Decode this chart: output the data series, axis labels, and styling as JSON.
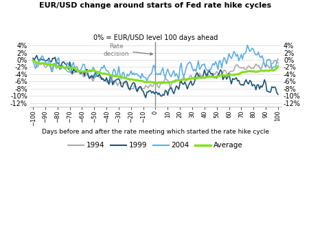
{
  "title": "EUR/USD change around starts of Fed rate hike cycles",
  "subtitle": "0% = EUR/USD level 100 days ahead",
  "xlabel": "Days before and after the rate meeting which started the rate hike cycle",
  "annotation": "Rate\ndecision",
  "ylim": [
    -0.13,
    0.05
  ],
  "yticks": [
    -0.12,
    -0.1,
    -0.08,
    -0.06,
    -0.04,
    -0.02,
    0.0,
    0.02,
    0.04
  ],
  "xticks": [
    -100,
    -90,
    -80,
    -70,
    -60,
    -50,
    -40,
    -30,
    -20,
    -10,
    0,
    10,
    20,
    30,
    40,
    50,
    60,
    70,
    80,
    90,
    100
  ],
  "color_1994": "#aaaaaa",
  "color_1999": "#1a5276",
  "color_2004": "#5dade2",
  "color_avg": "#82e019",
  "lw_1994": 1.2,
  "lw_1999": 1.2,
  "lw_2004": 1.2,
  "lw_avg": 2.2,
  "bg_color": "#ffffff",
  "grid_color": "#dddddd",
  "spine_color": "#bbbbbb",
  "vline_color": "#888888",
  "anno_color": "#777777"
}
